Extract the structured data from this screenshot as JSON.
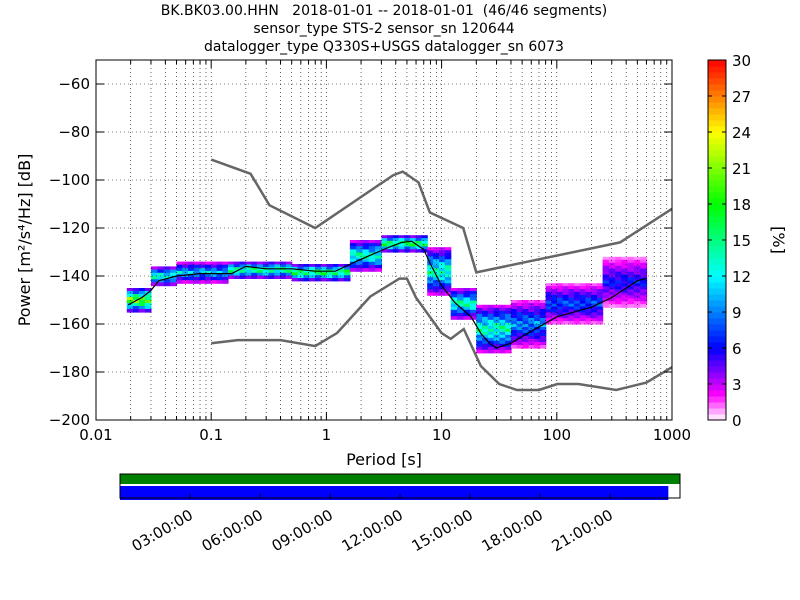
{
  "chart_data": [
    {
      "type": "heatmap",
      "title_lines": [
        "BK.BK03.00.HHN   2018-01-01 -- 2018-01-01  (46/46 segments)",
        "sensor_type STS-2 sensor_sn 120644",
        "datalogger_type Q330S+USGS datalogger_sn 6073"
      ],
      "xlabel": "Period [s]",
      "ylabel": "Power [m²/s⁴/Hz] [dB]",
      "x_scale": "log",
      "xlim": [
        0.01,
        1000
      ],
      "ylim": [
        -200,
        -50
      ],
      "x_ticks": [
        0.01,
        0.1,
        1,
        10,
        100,
        1000
      ],
      "x_tick_labels": [
        "0.01",
        "0.1",
        "1",
        "10",
        "100",
        "1000"
      ],
      "y_ticks": [
        -200,
        -180,
        -160,
        -140,
        -120,
        -100,
        -80,
        -60
      ],
      "y_tick_labels": [
        "−200",
        "−180",
        "−160",
        "−140",
        "−120",
        "−100",
        "−80",
        "−60"
      ],
      "grid": true,
      "colorbar": {
        "label": "[%]",
        "range": [
          0,
          30
        ],
        "ticks": [
          0,
          3,
          6,
          9,
          12,
          15,
          18,
          21,
          24,
          27,
          30
        ],
        "tick_labels": [
          "0",
          "3",
          "6",
          "9",
          "12",
          "15",
          "18",
          "21",
          "24",
          "27",
          "30"
        ]
      },
      "noise_model_high": [
        [
          0.1,
          -91.5
        ],
        [
          0.22,
          -97.4
        ],
        [
          0.32,
          -110.5
        ],
        [
          0.8,
          -120
        ],
        [
          3.8,
          -98
        ],
        [
          4.6,
          -96.5
        ],
        [
          6.3,
          -101
        ],
        [
          7.9,
          -113.5
        ],
        [
          15.4,
          -120
        ],
        [
          20,
          -138.5
        ],
        [
          354,
          -126
        ],
        [
          1000,
          -112
        ]
      ],
      "noise_model_low": [
        [
          0.1,
          -168
        ],
        [
          0.17,
          -166.7
        ],
        [
          0.4,
          -166.7
        ],
        [
          0.8,
          -169.2
        ],
        [
          1.24,
          -163.7
        ],
        [
          2.4,
          -148.6
        ],
        [
          4.3,
          -141.1
        ],
        [
          5,
          -141.1
        ],
        [
          6,
          -149
        ],
        [
          10,
          -163.8
        ],
        [
          12,
          -166.2
        ],
        [
          15.6,
          -162.1
        ],
        [
          21.9,
          -177.5
        ],
        [
          31.6,
          -185
        ],
        [
          45,
          -187.5
        ],
        [
          70,
          -187.5
        ],
        [
          101,
          -185
        ],
        [
          154,
          -185
        ],
        [
          328,
          -187.5
        ],
        [
          600,
          -184.4
        ],
        [
          1000,
          -178
        ]
      ],
      "median_curve": [
        [
          0.019,
          -152
        ],
        [
          0.025,
          -149
        ],
        [
          0.03,
          -146
        ],
        [
          0.035,
          -142
        ],
        [
          0.05,
          -140
        ],
        [
          0.08,
          -139
        ],
        [
          0.15,
          -139
        ],
        [
          0.2,
          -136
        ],
        [
          0.3,
          -137
        ],
        [
          0.5,
          -137
        ],
        [
          0.8,
          -138
        ],
        [
          1.2,
          -138
        ],
        [
          1.8,
          -134
        ],
        [
          2.5,
          -131
        ],
        [
          3.5,
          -128
        ],
        [
          4.5,
          -126
        ],
        [
          5.5,
          -125.5
        ],
        [
          7,
          -129
        ],
        [
          8,
          -135
        ],
        [
          10,
          -144
        ],
        [
          13,
          -151
        ],
        [
          18,
          -157
        ],
        [
          22,
          -164
        ],
        [
          26,
          -168
        ],
        [
          30,
          -170
        ],
        [
          40,
          -168
        ],
        [
          60,
          -163
        ],
        [
          100,
          -157
        ],
        [
          200,
          -153
        ],
        [
          300,
          -149
        ],
        [
          400,
          -145
        ],
        [
          500,
          -142
        ],
        [
          600,
          -141
        ]
      ],
      "psd_cells": [
        {
          "period_range": [
            0.0185,
            0.03
          ],
          "power_range": [
            -155,
            -145
          ],
          "percent": 13
        },
        {
          "period_range": [
            0.03,
            0.05
          ],
          "power_range": [
            -144,
            -136
          ],
          "percent": 9
        },
        {
          "period_range": [
            0.05,
            0.14
          ],
          "power_range": [
            -143,
            -134
          ],
          "percent": 7
        },
        {
          "period_range": [
            0.14,
            0.5
          ],
          "power_range": [
            -141,
            -134
          ],
          "percent": 10
        },
        {
          "period_range": [
            0.5,
            1.6
          ],
          "power_range": [
            -142,
            -135
          ],
          "percent": 11
        },
        {
          "period_range": [
            1.6,
            3.0
          ],
          "power_range": [
            -138,
            -125
          ],
          "percent": 9
        },
        {
          "period_range": [
            3.0,
            7.5
          ],
          "power_range": [
            -130,
            -123
          ],
          "percent": 11
        },
        {
          "period_range": [
            7.5,
            12
          ],
          "power_range": [
            -148,
            -128
          ],
          "percent": 9
        },
        {
          "period_range": [
            12,
            20
          ],
          "power_range": [
            -158,
            -145
          ],
          "percent": 9
        },
        {
          "period_range": [
            20,
            40
          ],
          "power_range": [
            -172,
            -152
          ],
          "percent": 9
        },
        {
          "period_range": [
            40,
            80
          ],
          "power_range": [
            -170,
            -150
          ],
          "percent": 6
        },
        {
          "period_range": [
            80,
            250
          ],
          "power_range": [
            -160,
            -143
          ],
          "percent": 5
        },
        {
          "period_range": [
            250,
            600
          ],
          "power_range": [
            -153,
            -132
          ],
          "percent": 4
        }
      ]
    },
    {
      "type": "bar",
      "title": "",
      "time_ticks": [
        "03:00:00",
        "06:00:00",
        "09:00:00",
        "12:00:00",
        "15:00:00",
        "18:00:00",
        "21:00:00"
      ],
      "xlim_hours": [
        0,
        24
      ],
      "series": [
        {
          "coverage_hours": [
            0,
            24
          ],
          "color": "#008000"
        },
        {
          "coverage_hours": [
            0,
            23.5
          ],
          "color": "#0000ff"
        }
      ]
    }
  ]
}
